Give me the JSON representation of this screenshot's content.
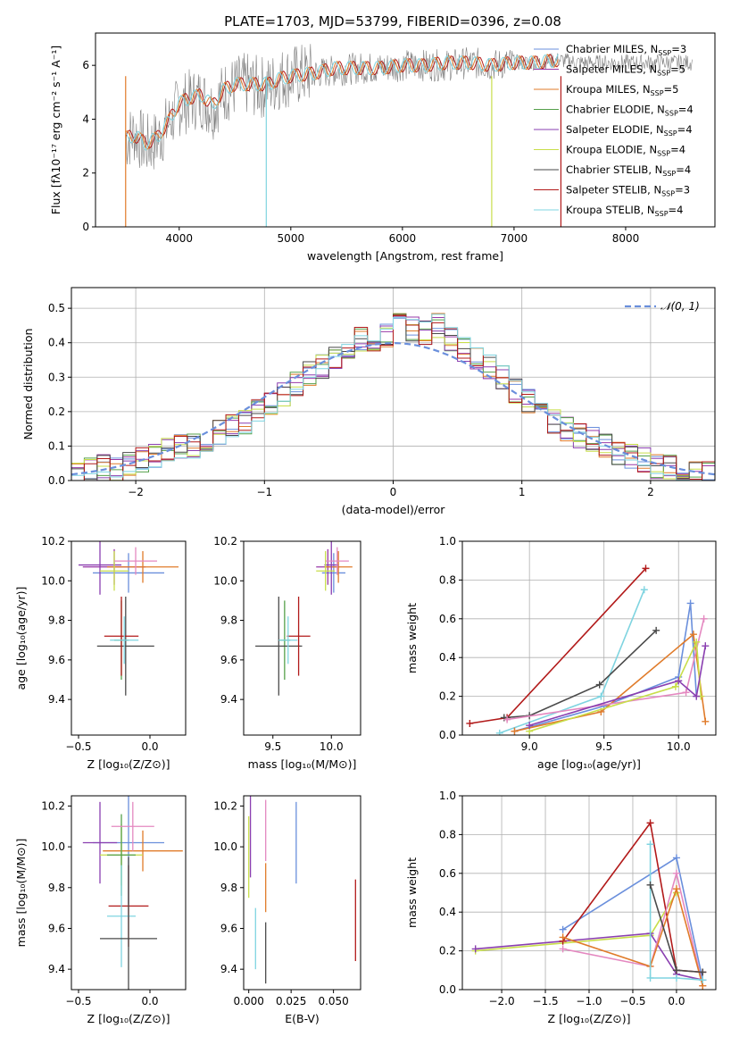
{
  "figure_title": "PLATE=1703, MJD=53799, FIBERID=0396, z=0.08",
  "colors": {
    "series": [
      "#6a8fdc",
      "#9a3aa8",
      "#e07b2a",
      "#55a04a",
      "#8a3fb0",
      "#c8de4a",
      "#4a4a4a",
      "#b21a1a",
      "#7fd4e0"
    ],
    "extra": "#e488c0",
    "normal": "#6a8fdc"
  },
  "chart_data": [
    {
      "id": "spectrum",
      "type": "line",
      "xlabel": "wavelength [Angstrom, rest frame]",
      "ylabel": "Flux [fλ10⁻¹⁷ erg cm⁻² s⁻¹ A⁻¹]",
      "xlim": [
        3250,
        8800
      ],
      "ylim": [
        0,
        7.2
      ],
      "xticks": [
        4000,
        5000,
        6000,
        7000,
        8000
      ],
      "yticks": [
        0,
        2,
        4,
        6
      ],
      "grid": false,
      "legend_position": "right",
      "legend": [
        {
          "name": "Chabrier MILES, N_SSP=3",
          "base": "Chabrier MILES, N",
          "sub": "SSP",
          "suffix": "=3"
        },
        {
          "name": "Salpeter MILES, N_SSP=5",
          "base": "Salpeter MILES, N",
          "sub": "SSP",
          "suffix": "=5"
        },
        {
          "name": "Kroupa MILES, N_SSP=5",
          "base": "Kroupa MILES, N",
          "sub": "SSP",
          "suffix": "=5"
        },
        {
          "name": "Chabrier ELODIE, N_SSP=4",
          "base": "Chabrier ELODIE, N",
          "sub": "SSP",
          "suffix": "=4"
        },
        {
          "name": "Salpeter ELODIE, N_SSP=4",
          "base": "Salpeter ELODIE, N",
          "sub": "SSP",
          "suffix": "=4"
        },
        {
          "name": "Kroupa ELODIE, N_SSP=4",
          "base": "Kroupa ELODIE, N",
          "sub": "SSP",
          "suffix": "=4"
        },
        {
          "name": "Chabrier STELIB, N_SSP=4",
          "base": "Chabrier STELIB, N",
          "sub": "SSP",
          "suffix": "=4"
        },
        {
          "name": "Salpeter STELIB, N_SSP=3",
          "base": "Salpeter STELIB, N",
          "sub": "SSP",
          "suffix": "=3"
        },
        {
          "name": "Kroupa STELIB, N_SSP=4",
          "base": "Kroupa STELIB, N",
          "sub": "SSP",
          "suffix": "=4"
        }
      ],
      "data_x": [
        3520,
        3600,
        3700,
        3800,
        3900,
        4000,
        4100,
        4200,
        4300,
        4400,
        4500,
        4600,
        4700,
        4800,
        4900,
        5000,
        5200,
        5400,
        5600,
        5800,
        6000,
        6200,
        6400,
        6600,
        6800,
        7000,
        7200,
        7400,
        7600,
        7800,
        8000,
        8200,
        8400,
        8600
      ],
      "data_y": [
        3.2,
        3.5,
        3.0,
        3.2,
        3.8,
        4.5,
        4.7,
        4.8,
        4.4,
        5.0,
        5.2,
        5.3,
        5.2,
        5.2,
        5.5,
        5.6,
        5.7,
        5.8,
        5.9,
        5.9,
        6.0,
        6.0,
        6.0,
        6.1,
        6.0,
        6.1,
        6.1,
        6.2,
        6.1,
        6.1,
        6.1,
        6.1,
        6.1,
        6.1
      ],
      "model_x": [
        3520,
        3600,
        3700,
        3800,
        3900,
        4000,
        4100,
        4200,
        4300,
        4400,
        4500,
        4600,
        4700,
        4800,
        4900,
        5000,
        5200,
        5400,
        5600,
        5800,
        6000,
        6200,
        6400,
        6600,
        6800,
        7000,
        7200,
        7400
      ],
      "model_y": [
        3.3,
        3.4,
        3.1,
        3.3,
        3.9,
        4.6,
        4.8,
        4.9,
        4.5,
        5.1,
        5.3,
        5.3,
        5.3,
        5.3,
        5.5,
        5.6,
        5.7,
        5.9,
        5.9,
        5.9,
        6.0,
        6.0,
        6.1,
        6.1,
        6.0,
        6.1,
        6.1,
        6.2
      ]
    },
    {
      "id": "residuals",
      "type": "line",
      "xlabel": "(data-model)/error",
      "ylabel": "Normed distribution",
      "xlim": [
        -2.5,
        2.5
      ],
      "ylim": [
        0,
        0.56
      ],
      "xticks": [
        -2,
        -1,
        0,
        1,
        2
      ],
      "yticks": [
        0.0,
        0.1,
        0.2,
        0.3,
        0.4,
        0.5
      ],
      "grid": true,
      "legend_position": "top-right",
      "legend": [
        {
          "name": "𝒩(0, 1)"
        }
      ],
      "hist_bins": [
        -2.5,
        -2.4,
        -2.3,
        -2.2,
        -2.1,
        -2.0,
        -1.9,
        -1.8,
        -1.7,
        -1.6,
        -1.5,
        -1.4,
        -1.3,
        -1.2,
        -1.1,
        -1.0,
        -0.9,
        -0.8,
        -0.7,
        -0.6,
        -0.5,
        -0.4,
        -0.3,
        -0.2,
        -0.1,
        0.0,
        0.1,
        0.2,
        0.3,
        0.4,
        0.5,
        0.6,
        0.7,
        0.8,
        0.9,
        1.0,
        1.1,
        1.2,
        1.3,
        1.4,
        1.5,
        1.6,
        1.7,
        1.8,
        1.9,
        2.0,
        2.1,
        2.2,
        2.3,
        2.4,
        2.5
      ],
      "hist_values": [
        0.02,
        0.03,
        0.04,
        0.03,
        0.05,
        0.06,
        0.07,
        0.09,
        0.1,
        0.1,
        0.12,
        0.14,
        0.16,
        0.17,
        0.2,
        0.22,
        0.25,
        0.28,
        0.31,
        0.33,
        0.36,
        0.39,
        0.41,
        0.39,
        0.42,
        0.45,
        0.44,
        0.43,
        0.45,
        0.41,
        0.38,
        0.35,
        0.33,
        0.3,
        0.26,
        0.23,
        0.2,
        0.17,
        0.15,
        0.13,
        0.12,
        0.1,
        0.08,
        0.07,
        0.06,
        0.04,
        0.04,
        0.03,
        0.02,
        0.02
      ]
    },
    {
      "id": "age-vs-Z",
      "type": "scatter",
      "xlabel": "Z [log₁₀(Z/Z⊙)]",
      "ylabel": "age  [log₁₀(age/yr)]",
      "xlim": [
        -0.55,
        0.25
      ],
      "ylim": [
        9.22,
        10.2
      ],
      "xticks": [
        -0.5,
        0.0
      ],
      "yticks": [
        9.4,
        9.6,
        9.8,
        10.0,
        10.2
      ],
      "points": [
        {
          "x": -0.15,
          "y": 10.04,
          "xerr": 0.25,
          "yerr": 0.1,
          "c": 0
        },
        {
          "x": -0.25,
          "y": 10.07,
          "xerr": 0.22,
          "yerr": 0.09,
          "c": 1
        },
        {
          "x": -0.05,
          "y": 10.07,
          "xerr": 0.25,
          "yerr": 0.08,
          "c": 2
        },
        {
          "x": -0.2,
          "y": 9.7,
          "xerr": 0.05,
          "yerr": 0.2,
          "c": 3
        },
        {
          "x": -0.35,
          "y": 10.08,
          "xerr": 0.15,
          "yerr": 0.15,
          "c": 4
        },
        {
          "x": -0.25,
          "y": 10.05,
          "xerr": 0.1,
          "yerr": 0.1,
          "c": 5
        },
        {
          "x": -0.17,
          "y": 9.67,
          "xerr": 0.2,
          "yerr": 0.25,
          "c": 6
        },
        {
          "x": -0.2,
          "y": 9.72,
          "xerr": 0.12,
          "yerr": 0.2,
          "c": 7
        },
        {
          "x": -0.18,
          "y": 9.7,
          "xerr": 0.1,
          "yerr": 0.12,
          "c": 8
        },
        {
          "x": -0.1,
          "y": 10.1,
          "xerr": 0.15,
          "yerr": 0.07,
          "c": 9
        }
      ]
    },
    {
      "id": "age-vs-mass",
      "type": "scatter",
      "xlabel": "mass [log₁₀(M/M⊙)]",
      "ylabel": "",
      "xlim": [
        9.25,
        10.25
      ],
      "ylim": [
        9.22,
        10.2
      ],
      "xticks": [
        9.5,
        10.0
      ],
      "yticks": [
        9.4,
        9.6,
        9.8,
        10.0,
        10.2
      ],
      "points": [
        {
          "x": 10.02,
          "y": 10.04,
          "xerr": 0.1,
          "yerr": 0.1,
          "c": 0
        },
        {
          "x": 9.97,
          "y": 10.07,
          "xerr": 0.1,
          "yerr": 0.09,
          "c": 1
        },
        {
          "x": 10.06,
          "y": 10.07,
          "xerr": 0.12,
          "yerr": 0.08,
          "c": 2
        },
        {
          "x": 9.6,
          "y": 9.7,
          "xerr": 0.05,
          "yerr": 0.2,
          "c": 3
        },
        {
          "x": 10.0,
          "y": 10.08,
          "xerr": 0.06,
          "yerr": 0.15,
          "c": 4
        },
        {
          "x": 9.95,
          "y": 10.05,
          "xerr": 0.08,
          "yerr": 0.1,
          "c": 5
        },
        {
          "x": 9.55,
          "y": 9.67,
          "xerr": 0.2,
          "yerr": 0.25,
          "c": 6
        },
        {
          "x": 9.72,
          "y": 9.72,
          "xerr": 0.1,
          "yerr": 0.2,
          "c": 7
        },
        {
          "x": 9.63,
          "y": 9.7,
          "xerr": 0.08,
          "yerr": 0.12,
          "c": 8
        },
        {
          "x": 10.05,
          "y": 10.1,
          "xerr": 0.1,
          "yerr": 0.07,
          "c": 9
        }
      ]
    },
    {
      "id": "massweight-vs-age",
      "type": "line",
      "xlabel": "age  [log₁₀(age/yr)]",
      "ylabel": "mass weight",
      "xlim": [
        8.55,
        10.25
      ],
      "ylim": [
        0,
        1.0
      ],
      "xticks": [
        9.0,
        9.5,
        10.0
      ],
      "yticks": [
        0.0,
        0.2,
        0.4,
        0.6,
        0.8,
        1.0
      ],
      "grid": true,
      "series": [
        {
          "c": 7,
          "x": [
            8.6,
            8.85,
            9.78
          ],
          "y": [
            0.06,
            0.09,
            0.86
          ]
        },
        {
          "c": 8,
          "x": [
            8.8,
            9.48,
            9.77
          ],
          "y": [
            0.01,
            0.2,
            0.75
          ]
        },
        {
          "c": 6,
          "x": [
            8.83,
            9.0,
            9.47,
            9.85
          ],
          "y": [
            0.09,
            0.1,
            0.26,
            0.54
          ]
        },
        {
          "c": 0,
          "x": [
            8.9,
            9.5,
            10.0,
            10.08,
            10.12
          ],
          "y": [
            0.02,
            0.15,
            0.3,
            0.68,
            0.2
          ]
        },
        {
          "c": 2,
          "x": [
            8.9,
            9.48,
            10.1,
            10.18
          ],
          "y": [
            0.02,
            0.12,
            0.52,
            0.07
          ]
        },
        {
          "c": 9,
          "x": [
            8.85,
            10.05,
            10.17
          ],
          "y": [
            0.08,
            0.22,
            0.6
          ]
        },
        {
          "c": 5,
          "x": [
            9.0,
            9.98,
            10.12,
            10.15
          ],
          "y": [
            0.02,
            0.25,
            0.48,
            0.2
          ]
        },
        {
          "c": 4,
          "x": [
            9.0,
            10.0,
            10.12,
            10.18
          ],
          "y": [
            0.05,
            0.28,
            0.2,
            0.46
          ]
        }
      ]
    },
    {
      "id": "mass-vs-Z",
      "type": "scatter",
      "xlabel": "Z [log₁₀(Z/Z⊙)]",
      "ylabel": "mass [log₁₀(M/M⊙)]",
      "xlim": [
        -0.55,
        0.25
      ],
      "ylim": [
        9.3,
        10.25
      ],
      "xticks": [
        -0.5,
        0.0
      ],
      "yticks": [
        9.4,
        9.6,
        9.8,
        10.0,
        10.2
      ],
      "points": [
        {
          "x": -0.15,
          "y": 10.02,
          "xerr": 0.25,
          "yerr": 0.3,
          "c": 0
        },
        {
          "x": -0.35,
          "y": 10.02,
          "xerr": 0.12,
          "yerr": 0.2,
          "c": 4
        },
        {
          "x": -0.05,
          "y": 9.98,
          "xerr": 0.28,
          "yerr": 0.1,
          "c": 2
        },
        {
          "x": -0.2,
          "y": 9.96,
          "xerr": 0.15,
          "yerr": 0.15,
          "c": 5
        },
        {
          "x": -0.2,
          "y": 9.96,
          "xerr": 0.1,
          "yerr": 0.2,
          "c": 3
        },
        {
          "x": -0.15,
          "y": 9.71,
          "xerr": 0.14,
          "yerr": 0.2,
          "c": 7
        },
        {
          "x": -0.2,
          "y": 9.66,
          "xerr": 0.1,
          "yerr": 0.25,
          "c": 8
        },
        {
          "x": -0.15,
          "y": 9.55,
          "xerr": 0.2,
          "yerr": 0.4,
          "c": 6
        },
        {
          "x": -0.12,
          "y": 10.1,
          "xerr": 0.15,
          "yerr": 0.12,
          "c": 9
        }
      ]
    },
    {
      "id": "mass-vs-EBV",
      "type": "scatter",
      "xlabel": "E(B-V)",
      "ylabel": "",
      "xlim": [
        -0.003,
        0.066
      ],
      "ylim": [
        9.3,
        10.25
      ],
      "xticks": [
        0.0,
        0.025,
        0.05
      ],
      "yticks": [
        9.4,
        9.6,
        9.8,
        10.0,
        10.2
      ],
      "points": [
        {
          "x": 0.0,
          "y": 9.95,
          "yerr": 0.2,
          "c": 5
        },
        {
          "x": 0.001,
          "y": 10.05,
          "yerr": 0.2,
          "c": 4
        },
        {
          "x": 0.004,
          "y": 9.55,
          "yerr": 0.15,
          "c": 8
        },
        {
          "x": 0.01,
          "y": 10.08,
          "yerr": 0.15,
          "c": 9
        },
        {
          "x": 0.01,
          "y": 9.8,
          "yerr": 0.12,
          "c": 2
        },
        {
          "x": 0.01,
          "y": 9.48,
          "yerr": 0.15,
          "c": 6
        },
        {
          "x": 0.028,
          "y": 10.02,
          "yerr": 0.2,
          "c": 0
        },
        {
          "x": 0.063,
          "y": 9.64,
          "yerr": 0.2,
          "c": 7
        }
      ]
    },
    {
      "id": "massweight-vs-Z",
      "type": "line",
      "xlabel": "Z [log₁₀(Z/Z⊙)]",
      "ylabel": "mass weight",
      "xlim": [
        -2.45,
        0.45
      ],
      "ylim": [
        0,
        1.0
      ],
      "xticks": [
        -2.0,
        -1.5,
        -1.0,
        -0.5,
        0.0
      ],
      "yticks": [
        0.0,
        0.2,
        0.4,
        0.6,
        0.8,
        1.0
      ],
      "grid": true,
      "series": [
        {
          "c": 5,
          "x": [
            -2.3,
            -0.3,
            0.0
          ],
          "y": [
            0.2,
            0.28,
            0.5
          ]
        },
        {
          "c": 4,
          "x": [
            -2.3,
            -0.3,
            0.0,
            0.3
          ],
          "y": [
            0.21,
            0.29,
            0.08,
            0.05
          ]
        },
        {
          "c": 0,
          "x": [
            -1.3,
            0.0,
            0.3
          ],
          "y": [
            0.31,
            0.68,
            0.05
          ]
        },
        {
          "c": 7,
          "x": [
            -1.3,
            -0.3,
            0.0,
            0.3
          ],
          "y": [
            0.25,
            0.86,
            0.1,
            0.09
          ]
        },
        {
          "c": 9,
          "x": [
            -1.3,
            -0.3,
            0.0,
            0.3
          ],
          "y": [
            0.21,
            0.12,
            0.6,
            0.02
          ]
        },
        {
          "c": 2,
          "x": [
            -1.3,
            -0.3,
            0.0,
            0.3
          ],
          "y": [
            0.27,
            0.12,
            0.52,
            0.02
          ]
        },
        {
          "c": 8,
          "x": [
            -0.3,
            -0.3,
            0.0,
            0.3
          ],
          "y": [
            0.75,
            0.06,
            0.06,
            0.05
          ]
        },
        {
          "c": 6,
          "x": [
            -0.3,
            0.0,
            0.3
          ],
          "y": [
            0.54,
            0.1,
            0.09
          ]
        }
      ]
    }
  ]
}
